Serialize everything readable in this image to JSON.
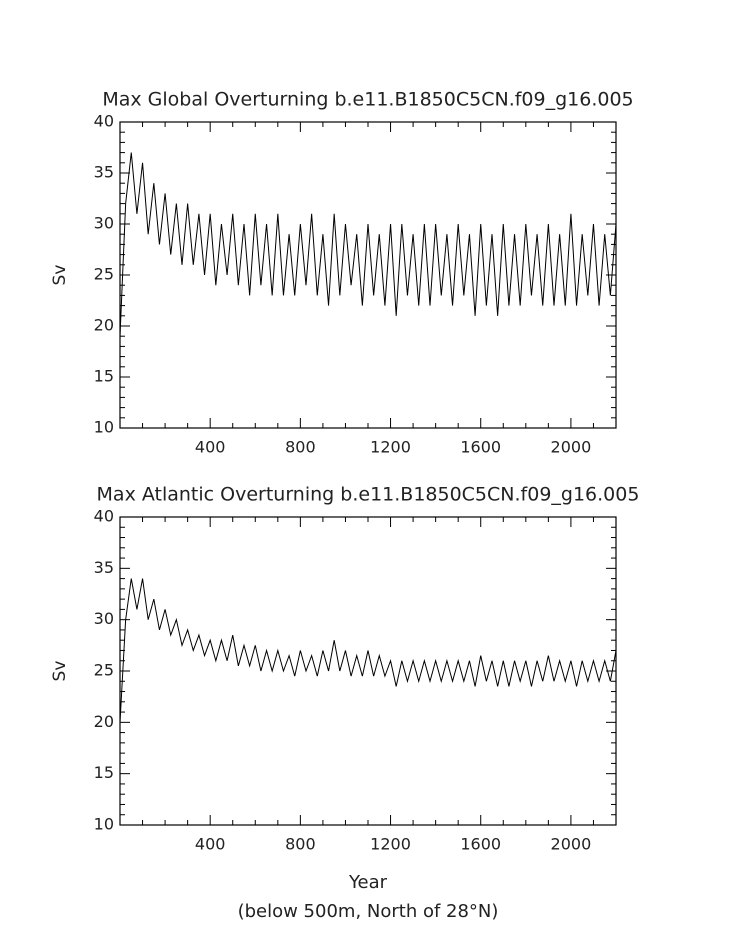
{
  "chart_data": [
    {
      "type": "line",
      "title": "Max Global Overturning b.e11.B1850C5CN.f09_g16.005",
      "ylabel": "Sv",
      "x": [
        0,
        25,
        50,
        75,
        100,
        125,
        150,
        175,
        200,
        225,
        250,
        275,
        300,
        325,
        350,
        375,
        400,
        425,
        450,
        475,
        500,
        525,
        550,
        575,
        600,
        625,
        650,
        675,
        700,
        725,
        750,
        775,
        800,
        825,
        850,
        875,
        900,
        925,
        950,
        975,
        1000,
        1025,
        1050,
        1075,
        1100,
        1125,
        1150,
        1175,
        1200,
        1225,
        1250,
        1275,
        1300,
        1325,
        1350,
        1375,
        1400,
        1425,
        1450,
        1475,
        1500,
        1525,
        1550,
        1575,
        1600,
        1625,
        1650,
        1675,
        1700,
        1725,
        1750,
        1775,
        1800,
        1825,
        1850,
        1875,
        1900,
        1925,
        1950,
        1975,
        2000,
        2025,
        2050,
        2075,
        2100,
        2125,
        2150,
        2175,
        2200
      ],
      "series": [
        {
          "color": "#000000",
          "values": [
            19,
            32,
            37,
            31,
            36,
            29,
            34,
            28,
            33,
            27,
            32,
            26,
            32,
            26,
            31,
            25,
            31,
            24,
            30,
            25,
            31,
            24,
            30,
            23,
            31,
            24,
            30,
            23,
            31,
            23,
            29,
            23,
            30,
            24,
            31,
            23,
            29,
            22,
            31,
            23,
            30,
            24,
            29,
            22,
            30,
            23,
            29,
            22,
            30,
            21,
            30,
            23,
            29,
            22,
            30,
            22,
            30,
            23,
            29,
            22,
            30,
            23,
            29,
            21,
            30,
            22,
            29,
            21,
            30,
            22,
            29,
            22,
            30,
            23,
            29,
            22,
            30,
            22,
            29,
            22,
            31,
            22,
            29,
            23,
            30,
            22,
            29,
            23,
            30
          ]
        }
      ],
      "xlim": [
        0,
        2200
      ],
      "xticks": [
        400,
        800,
        1200,
        1600,
        2000
      ],
      "ylim": [
        10,
        40
      ],
      "yticks": [
        10,
        15,
        20,
        25,
        30,
        35,
        40
      ]
    },
    {
      "type": "line",
      "title": "Max Atlantic Overturning b.e11.B1850C5CN.f09_g16.005",
      "ylabel": "Sv",
      "xlabel": "Year",
      "note": "(below 500m, North of 28°N)",
      "x": [
        0,
        25,
        50,
        75,
        100,
        125,
        150,
        175,
        200,
        225,
        250,
        275,
        300,
        325,
        350,
        375,
        400,
        425,
        450,
        475,
        500,
        525,
        550,
        575,
        600,
        625,
        650,
        675,
        700,
        725,
        750,
        775,
        800,
        825,
        850,
        875,
        900,
        925,
        950,
        975,
        1000,
        1025,
        1050,
        1075,
        1100,
        1125,
        1150,
        1175,
        1200,
        1225,
        1250,
        1275,
        1300,
        1325,
        1350,
        1375,
        1400,
        1425,
        1450,
        1475,
        1500,
        1525,
        1550,
        1575,
        1600,
        1625,
        1650,
        1675,
        1700,
        1725,
        1750,
        1775,
        1800,
        1825,
        1850,
        1875,
        1900,
        1925,
        1950,
        1975,
        2000,
        2025,
        2050,
        2075,
        2100,
        2125,
        2150,
        2175,
        2200
      ],
      "series": [
        {
          "color": "#000000",
          "values": [
            20,
            30,
            34,
            31,
            34,
            30,
            32,
            29,
            31,
            28.5,
            30,
            27.5,
            29,
            27,
            28.5,
            26.5,
            28,
            26,
            28,
            26,
            28.5,
            25.5,
            27.5,
            25.5,
            27.5,
            25,
            27,
            25,
            27,
            25,
            26.5,
            24.5,
            27,
            25,
            26.5,
            24.5,
            27,
            25,
            28,
            25,
            27,
            24.5,
            26.5,
            24.5,
            27,
            24.5,
            26.5,
            24.5,
            26,
            23.5,
            26,
            24,
            26,
            24,
            26,
            24,
            26,
            24,
            26,
            24,
            26,
            24,
            26,
            23.5,
            26.5,
            24,
            26,
            23.5,
            26,
            23.5,
            26,
            24,
            26,
            23.5,
            26,
            24,
            26.5,
            24,
            26,
            24,
            26,
            23.5,
            26,
            24,
            26,
            24,
            26,
            24,
            27
          ]
        }
      ],
      "xlim": [
        0,
        2200
      ],
      "xticks": [
        400,
        800,
        1200,
        1600,
        2000
      ],
      "ylim": [
        10,
        40
      ],
      "yticks": [
        10,
        15,
        20,
        25,
        30,
        35,
        40
      ]
    }
  ]
}
